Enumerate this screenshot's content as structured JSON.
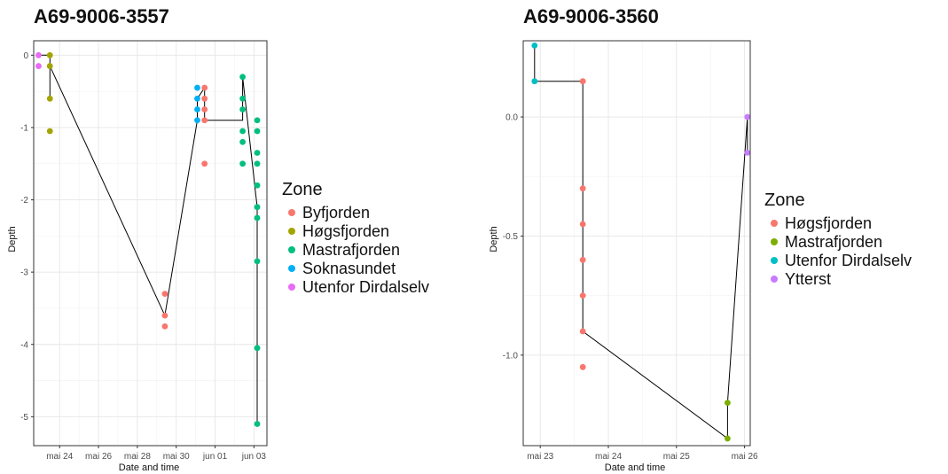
{
  "colors": {
    "Byfjorden": "#F8766D",
    "Høgsfjorden (5)": "#A3A500",
    "Mastrafjorden (5)": "#00BF7D",
    "Soknasundet": "#00B0F6",
    "Utenfor Dirdalselv (5)": "#E76BF3",
    "Høgsfjorden (4)": "#F8766D",
    "Mastrafjorden (4)": "#7CAE00",
    "Utenfor Dirdalselv (4)": "#00BFC4",
    "Ytterst": "#C77CFF"
  },
  "chart_data": [
    {
      "type": "scatter",
      "title": "A69-9006-3557",
      "xlabel": "Date and time",
      "ylabel": "Depth",
      "x_is_date": true,
      "xlim": [
        "2023-05-22T16:00",
        "2023-06-03T16:00"
      ],
      "ylim": [
        -5.4,
        0.2
      ],
      "x_ticks": [
        {
          "value": "2023-05-24",
          "label": "mai 24"
        },
        {
          "value": "2023-05-26",
          "label": "mai 26"
        },
        {
          "value": "2023-05-28",
          "label": "mai 28"
        },
        {
          "value": "2023-05-30",
          "label": "mai 30"
        },
        {
          "value": "2023-06-01",
          "label": "jun 01"
        },
        {
          "value": "2023-06-03",
          "label": "jun 03"
        }
      ],
      "y_ticks": [
        {
          "value": 0,
          "label": "0"
        },
        {
          "value": -1,
          "label": "-1"
        },
        {
          "value": -2,
          "label": "-2"
        },
        {
          "value": -3,
          "label": "-3"
        },
        {
          "value": -4,
          "label": "-4"
        },
        {
          "value": -5,
          "label": "-5"
        }
      ],
      "grid": true,
      "legend": {
        "title": "Zone",
        "placement": "right"
      },
      "series": [
        {
          "name": "Byfjorden",
          "color_key": "Byfjorden",
          "points": [
            {
              "x": "2023-05-29T10:00",
              "y": -3.3
            },
            {
              "x": "2023-05-29T10:00",
              "y": -3.6
            },
            {
              "x": "2023-05-29T10:00",
              "y": -3.75
            },
            {
              "x": "2023-05-31T11:00",
              "y": -0.45
            },
            {
              "x": "2023-05-31T11:00",
              "y": -0.6
            },
            {
              "x": "2023-05-31T11:00",
              "y": -0.75
            },
            {
              "x": "2023-05-31T11:00",
              "y": -0.9
            },
            {
              "x": "2023-05-31T11:00",
              "y": -1.5
            }
          ]
        },
        {
          "name": "Høgsfjorden",
          "color_key": "Høgsfjorden (5)",
          "points": [
            {
              "x": "2023-05-23T12:00",
              "y": 0.0
            },
            {
              "x": "2023-05-23T12:00",
              "y": -0.15
            },
            {
              "x": "2023-05-23T12:00",
              "y": -0.6
            },
            {
              "x": "2023-05-23T12:00",
              "y": -1.05
            }
          ]
        },
        {
          "name": "Mastrafjorden",
          "color_key": "Mastrafjorden (5)",
          "points": [
            {
              "x": "2023-06-02T10:00",
              "y": -0.3
            },
            {
              "x": "2023-06-02T10:00",
              "y": -0.6
            },
            {
              "x": "2023-06-02T10:00",
              "y": -0.75
            },
            {
              "x": "2023-06-02T10:00",
              "y": -1.05
            },
            {
              "x": "2023-06-02T10:00",
              "y": -1.2
            },
            {
              "x": "2023-06-02T10:00",
              "y": -1.5
            },
            {
              "x": "2023-06-03T04:00",
              "y": -0.9
            },
            {
              "x": "2023-06-03T04:00",
              "y": -1.05
            },
            {
              "x": "2023-06-03T04:00",
              "y": -1.35
            },
            {
              "x": "2023-06-03T04:00",
              "y": -1.5
            },
            {
              "x": "2023-06-03T04:00",
              "y": -1.8
            },
            {
              "x": "2023-06-03T04:00",
              "y": -2.1
            },
            {
              "x": "2023-06-03T04:00",
              "y": -2.25
            },
            {
              "x": "2023-06-03T04:00",
              "y": -2.85
            },
            {
              "x": "2023-06-03T04:00",
              "y": -4.05
            },
            {
              "x": "2023-06-03T04:00",
              "y": -5.1
            }
          ]
        },
        {
          "name": "Soknasundet",
          "color_key": "Soknasundet",
          "points": [
            {
              "x": "2023-05-31T02:00",
              "y": -0.45
            },
            {
              "x": "2023-05-31T02:00",
              "y": -0.6
            },
            {
              "x": "2023-05-31T02:00",
              "y": -0.75
            },
            {
              "x": "2023-05-31T02:00",
              "y": -0.9
            }
          ]
        },
        {
          "name": "Utenfor Dirdalselv",
          "color_key": "Utenfor Dirdalselv (5)",
          "points": [
            {
              "x": "2023-05-22T22:00",
              "y": 0.0
            },
            {
              "x": "2023-05-22T22:00",
              "y": -0.15
            }
          ]
        }
      ],
      "path": [
        {
          "x": "2023-05-22T22:00",
          "y": 0.0
        },
        {
          "x": "2023-05-23T12:00",
          "y": 0.0
        },
        {
          "x": "2023-05-23T12:00",
          "y": -0.6
        },
        {
          "x": "2023-05-23T12:00",
          "y": -0.15
        },
        {
          "x": "2023-05-29T10:00",
          "y": -3.6
        },
        {
          "x": "2023-05-31T02:00",
          "y": -0.9
        },
        {
          "x": "2023-05-31T02:00",
          "y": -0.6
        },
        {
          "x": "2023-05-31T11:00",
          "y": -0.45
        },
        {
          "x": "2023-05-31T11:00",
          "y": -0.9
        },
        {
          "x": "2023-06-02T10:00",
          "y": -0.9
        },
        {
          "x": "2023-06-02T10:00",
          "y": -0.3
        },
        {
          "x": "2023-06-03T04:00",
          "y": -2.1
        },
        {
          "x": "2023-06-03T04:00",
          "y": -5.1
        }
      ]
    },
    {
      "type": "scatter",
      "title": "A69-9006-3560",
      "xlabel": "Date and time",
      "ylabel": "Depth",
      "x_is_date": true,
      "xlim": [
        "2023-05-22T18:00",
        "2023-05-26T02:00"
      ],
      "ylim": [
        -1.38,
        0.32
      ],
      "x_ticks": [
        {
          "value": "2023-05-23",
          "label": "mai 23"
        },
        {
          "value": "2023-05-24",
          "label": "mai 24"
        },
        {
          "value": "2023-05-25",
          "label": "mai 25"
        },
        {
          "value": "2023-05-26",
          "label": "mai 26"
        }
      ],
      "y_ticks": [
        {
          "value": 0,
          "label": "0.0"
        },
        {
          "value": -0.5,
          "label": "-0.5"
        },
        {
          "value": -1.0,
          "label": "-1.0"
        }
      ],
      "grid": true,
      "legend": {
        "title": "Zone",
        "placement": "right"
      },
      "series": [
        {
          "name": "Høgsfjorden",
          "color_key": "Høgsfjorden (4)",
          "points": [
            {
              "x": "2023-05-23T15:00",
              "y": 0.15
            },
            {
              "x": "2023-05-23T15:00",
              "y": -0.3
            },
            {
              "x": "2023-05-23T15:00",
              "y": -0.45
            },
            {
              "x": "2023-05-23T15:00",
              "y": -0.6
            },
            {
              "x": "2023-05-23T15:00",
              "y": -0.75
            },
            {
              "x": "2023-05-23T15:00",
              "y": -0.9
            },
            {
              "x": "2023-05-23T15:00",
              "y": -1.05
            }
          ]
        },
        {
          "name": "Mastrafjorden",
          "color_key": "Mastrafjorden (4)",
          "points": [
            {
              "x": "2023-05-25T18:00",
              "y": -1.2
            },
            {
              "x": "2023-05-25T18:00",
              "y": -1.35
            }
          ]
        },
        {
          "name": "Utenfor Dirdalselv",
          "color_key": "Utenfor Dirdalselv (4)",
          "points": [
            {
              "x": "2023-05-22T22:00",
              "y": 0.3
            },
            {
              "x": "2023-05-22T22:00",
              "y": 0.15
            }
          ]
        },
        {
          "name": "Ytterst",
          "color_key": "Ytterst",
          "points": [
            {
              "x": "2023-05-26T01:00",
              "y": 0.0
            },
            {
              "x": "2023-05-26T01:00",
              "y": -0.15
            }
          ]
        }
      ],
      "path": [
        {
          "x": "2023-05-22T22:00",
          "y": 0.3
        },
        {
          "x": "2023-05-22T22:00",
          "y": 0.15
        },
        {
          "x": "2023-05-23T15:00",
          "y": 0.15
        },
        {
          "x": "2023-05-23T15:00",
          "y": -0.9
        },
        {
          "x": "2023-05-25T18:00",
          "y": -1.35
        },
        {
          "x": "2023-05-25T18:00",
          "y": -1.2
        },
        {
          "x": "2023-05-26T01:00",
          "y": 0.0
        },
        {
          "x": "2023-05-26T01:00",
          "y": -0.15
        }
      ]
    }
  ]
}
